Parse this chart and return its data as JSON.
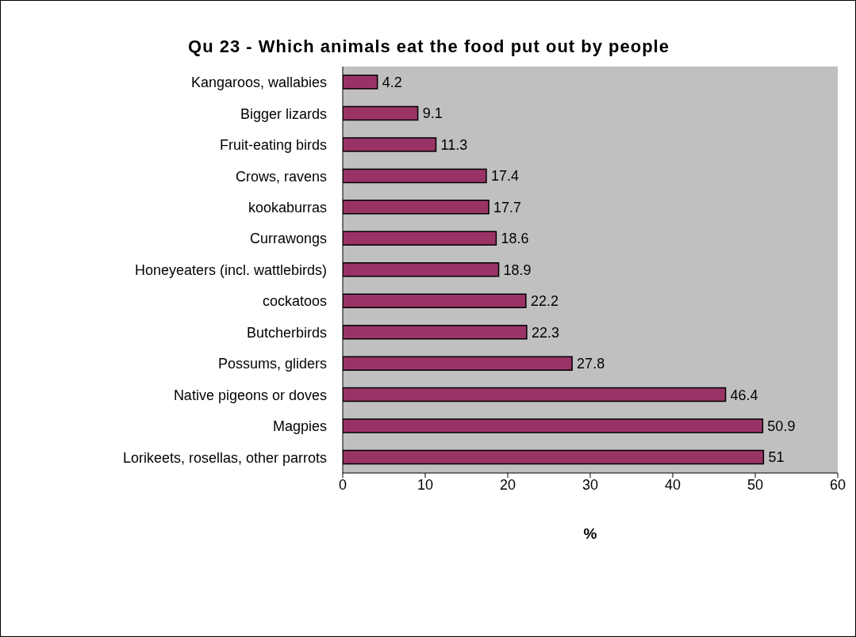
{
  "chart_data": {
    "type": "bar",
    "orientation": "horizontal",
    "title": "Qu 23 - Which animals eat the food put out by people",
    "xlabel": "%",
    "categories": [
      "Kangaroos, wallabies",
      "Bigger lizards",
      "Fruit-eating birds",
      "Crows, ravens",
      "kookaburras",
      "Currawongs",
      "Honeyeaters (incl. wattlebirds)",
      "cockatoos",
      "Butcherbirds",
      "Possums, gliders",
      "Native pigeons or doves",
      "Magpies",
      "Lorikeets, rosellas, other parrots"
    ],
    "values": [
      4.2,
      9.1,
      11.3,
      17.4,
      17.7,
      18.6,
      18.9,
      22.2,
      22.3,
      27.8,
      46.4,
      50.9,
      51
    ],
    "color": "#993366",
    "xlim": [
      0,
      60
    ],
    "xticks": [
      0,
      10,
      20,
      30,
      40,
      50,
      60
    ],
    "grid": false,
    "data_labels": true
  }
}
